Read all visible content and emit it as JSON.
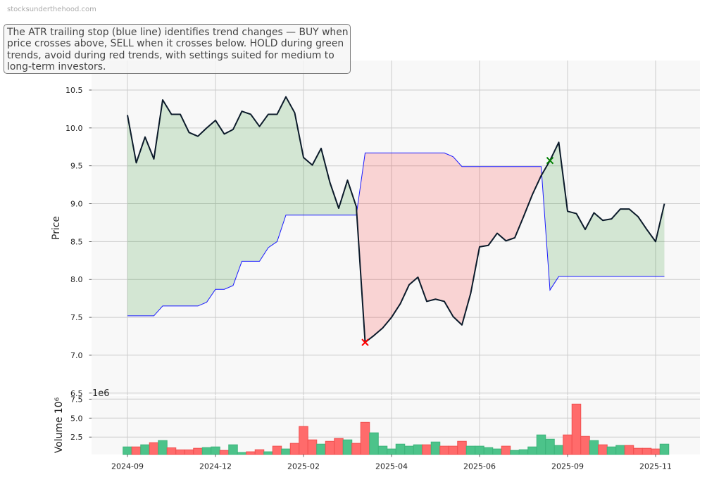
{
  "watermark": "stocksunderthehood.com",
  "annotation": {
    "lines": [
      "The ATR trailing stop (blue line) identifies trend changes — BUY when",
      "price crosses above, SELL when it crosses below. HOLD during green",
      "trends, avoid during red trends, with settings suited for medium to",
      "long-term investors."
    ]
  },
  "chart_data": {
    "type": "line",
    "title": "",
    "xlabel": "",
    "xlim": [
      -4.08,
      65.04
    ],
    "x_tick_indices": [
      0,
      10,
      20,
      30,
      40,
      50,
      60
    ],
    "x_tick_labels": [
      "2024-09",
      "2024-12",
      "2025-02",
      "2025-04",
      "2025-06",
      "2025-09",
      "2025-11"
    ],
    "grid": true,
    "legend": null,
    "style": {
      "axes_bg": "#f8f8f8",
      "grid_color": "#cccccc",
      "tick_color": "#333333",
      "label_color": "#222222",
      "uptrend_fill": "#008000",
      "downtrend_fill": "#ff0000",
      "fill_alpha": 0.15,
      "bar_up_fill": "#4cc38a",
      "bar_up_edge": "#3db47b",
      "bar_down_fill": "#ff6b6b",
      "bar_down_edge": "#f05050"
    },
    "price_panel": {
      "ylabel": "Price",
      "ylim": [
        6.47,
        10.89
      ],
      "yticks": [
        6.5,
        7.0,
        7.5,
        8.0,
        8.5,
        9.0,
        9.5,
        10.0,
        10.5
      ],
      "ytick_labels": [
        "6.5",
        "7.0",
        "7.5",
        "8.0",
        "8.5",
        "9.0",
        "9.5",
        "10.0",
        "10.5"
      ],
      "series": [
        {
          "name": "Price",
          "color": "#0b1a2a",
          "width": 2,
          "values": [
            10.17,
            9.54,
            9.88,
            9.59,
            10.37,
            10.18,
            10.18,
            9.94,
            9.89,
            10.0,
            10.1,
            9.92,
            9.98,
            10.22,
            10.18,
            10.02,
            10.18,
            10.18,
            10.41,
            10.2,
            9.61,
            9.51,
            9.73,
            9.28,
            8.94,
            9.31,
            8.96,
            7.17,
            7.26,
            7.36,
            7.5,
            7.68,
            7.93,
            8.03,
            7.71,
            7.74,
            7.71,
            7.51,
            7.4,
            7.82,
            8.43,
            8.45,
            8.61,
            8.51,
            8.55,
            8.83,
            9.12,
            9.37,
            9.57,
            9.81,
            8.9,
            8.87,
            8.66,
            8.88,
            8.78,
            8.8,
            8.93,
            8.93,
            8.83,
            8.66,
            8.5,
            9.0
          ]
        },
        {
          "name": "ATR Trailing Stop",
          "color": "#1a1aff",
          "width": 1,
          "values": [
            7.52,
            7.52,
            7.52,
            7.52,
            7.65,
            7.65,
            7.65,
            7.65,
            7.65,
            7.7,
            7.87,
            7.87,
            7.92,
            8.24,
            8.24,
            8.24,
            8.42,
            8.5,
            8.85,
            8.85,
            8.85,
            8.85,
            8.85,
            8.85,
            8.85,
            8.85,
            8.85,
            9.67,
            9.67,
            9.67,
            9.67,
            9.67,
            9.67,
            9.67,
            9.67,
            9.67,
            9.67,
            9.62,
            9.49,
            9.49,
            9.49,
            9.49,
            9.49,
            9.49,
            9.49,
            9.49,
            9.49,
            9.49,
            7.86,
            8.04,
            8.04,
            8.04,
            8.04,
            8.04,
            8.04,
            8.04,
            8.04,
            8.04,
            8.04,
            8.04,
            8.04,
            8.04
          ]
        }
      ],
      "signals": [
        {
          "type": "SELL",
          "index": 27,
          "price": 7.17,
          "marker": "x",
          "color": "#ff0000"
        },
        {
          "type": "BUY",
          "index": 48,
          "price": 9.57,
          "marker": "x",
          "color": "#008000"
        }
      ]
    },
    "volume_panel": {
      "ylabel": "Volume  10⁶",
      "offset_text": "1e6",
      "unit_scale": 1000000,
      "ylim": [
        0.2,
        7.9
      ],
      "yticks": [
        2.5,
        5.0,
        7.5
      ],
      "ytick_labels": [
        "2.5",
        "5.0",
        "7.5"
      ],
      "values": [
        1.2,
        1.2,
        1.48,
        1.76,
        2.04,
        1.08,
        0.81,
        0.81,
        1.02,
        1.11,
        1.2,
        0.74,
        1.48,
        0.46,
        0.56,
        0.83,
        0.56,
        1.3,
        0.93,
        1.67,
        3.89,
        2.13,
        1.57,
        1.94,
        2.31,
        2.13,
        1.67,
        4.44,
        3.06,
        1.3,
        0.93,
        1.57,
        1.3,
        1.48,
        1.48,
        1.85,
        1.3,
        1.3,
        1.94,
        1.3,
        1.3,
        1.11,
        0.93,
        1.3,
        0.74,
        0.83,
        1.2,
        2.78,
        2.22,
        1.39,
        2.78,
        6.85,
        2.59,
        2.04,
        1.48,
        1.2,
        1.39,
        1.39,
        1.02,
        1.02,
        0.93,
        1.57
      ],
      "directions": [
        "up",
        "down",
        "up",
        "down",
        "up",
        "down",
        "down",
        "down",
        "down",
        "up",
        "up",
        "down",
        "up",
        "up",
        "down",
        "down",
        "up",
        "down",
        "up",
        "down",
        "down",
        "down",
        "up",
        "down",
        "down",
        "up",
        "down",
        "down",
        "up",
        "up",
        "up",
        "up",
        "up",
        "up",
        "down",
        "up",
        "down",
        "down",
        "down",
        "up",
        "up",
        "up",
        "up",
        "down",
        "up",
        "up",
        "up",
        "up",
        "up",
        "up",
        "down",
        "down",
        "down",
        "up",
        "down",
        "up",
        "up",
        "down",
        "down",
        "down",
        "down",
        "up"
      ]
    }
  }
}
